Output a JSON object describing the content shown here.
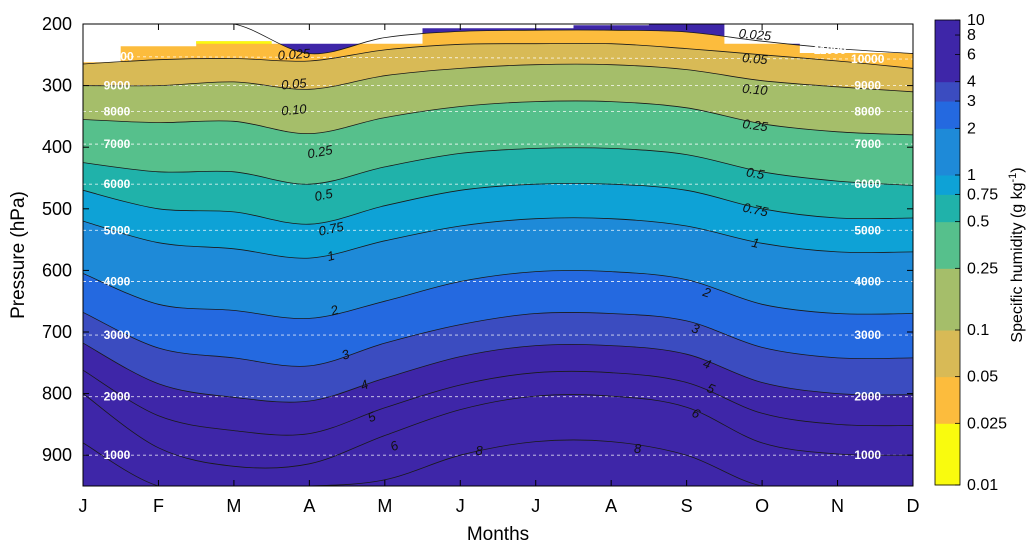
{
  "chart_data": {
    "type": "heatmap",
    "subtype": "filled-contour",
    "xlabel": "Months",
    "ylabel": "Pressure (hPa)",
    "x_ticks": [
      "J",
      "F",
      "M",
      "A",
      "M",
      "J",
      "J",
      "A",
      "S",
      "O",
      "N",
      "D"
    ],
    "y_ticks": [
      200,
      300,
      400,
      500,
      600,
      700,
      800,
      900
    ],
    "ylim": [
      200,
      950
    ],
    "y_reversed": true,
    "colorbar": {
      "title": "Specific humidity (g kg",
      "title_sup": "-1",
      "title_end": ")",
      "scale": "log",
      "range": [
        0.01,
        10
      ],
      "tick_labels": [
        "0.01",
        "0.025",
        "0.05",
        "0.1",
        "0.25",
        "0.5",
        "0.75",
        "1",
        "2",
        "3",
        "4",
        "6",
        "8",
        "10"
      ],
      "colors": [
        "#f9fb0e",
        "#fcbc3d",
        "#d8ba56",
        "#a5be6a",
        "#56c08c",
        "#20b2aa",
        "#0ea2d6",
        "#1e8ad8",
        "#2469e0",
        "#3b4cc0",
        "#3e26a8"
      ]
    },
    "humidity_levels": [
      "0.025",
      "0.05",
      "0.10",
      "0.25",
      "0.5",
      "0.75",
      "1",
      "2",
      "3",
      "4",
      "5",
      "6",
      "8"
    ],
    "level_pressures_hPa": {
      "0.025": [
        200,
        200,
        200,
        248,
        222,
        212,
        210,
        210,
        213,
        228,
        240,
        248
      ],
      "0.05": [
        265,
        258,
        256,
        260,
        242,
        233,
        232,
        232,
        240,
        250,
        260,
        272
      ],
      "0.10": [
        300,
        300,
        294,
        306,
        284,
        272,
        266,
        266,
        274,
        292,
        302,
        310
      ],
      "0.25": [
        355,
        360,
        358,
        378,
        352,
        334,
        326,
        326,
        336,
        362,
        375,
        380
      ],
      "0.5": [
        425,
        440,
        440,
        460,
        432,
        410,
        402,
        402,
        412,
        440,
        455,
        462
      ],
      "0.75": [
        470,
        500,
        505,
        525,
        495,
        470,
        460,
        460,
        470,
        500,
        515,
        515
      ],
      "1": [
        520,
        555,
        565,
        580,
        552,
        528,
        516,
        516,
        528,
        556,
        570,
        570
      ],
      "2": [
        605,
        655,
        665,
        678,
        650,
        618,
        602,
        602,
        615,
        655,
        670,
        670
      ],
      "3": [
        668,
        726,
        742,
        755,
        718,
        688,
        670,
        670,
        682,
        725,
        742,
        742
      ],
      "4": [
        718,
        784,
        806,
        812,
        775,
        740,
        722,
        722,
        736,
        782,
        800,
        802
      ],
      "5": [
        762,
        836,
        860,
        865,
        823,
        786,
        766,
        766,
        782,
        832,
        850,
        852
      ],
      "6": [
        800,
        888,
        918,
        914,
        868,
        826,
        804,
        804,
        822,
        880,
        898,
        900
      ],
      "8": [
        880,
        950,
        950,
        950,
        940,
        900,
        878,
        878,
        900,
        950,
        950,
        950
      ]
    },
    "max_values_by_month": [
      "3",
      "4",
      "4",
      "4",
      "6",
      "8",
      "8",
      "8",
      "8",
      "6",
      "5",
      "4"
    ],
    "top_cut_hPa": [
      262,
      238,
      232,
      232,
      232,
      207,
      207,
      202,
      202,
      232,
      247,
      247
    ],
    "yellow_tops_hPa": [
      262,
      236,
      228,
      232,
      232,
      207,
      207,
      202,
      200,
      232,
      247,
      247
    ],
    "altitude_labels_m": [
      "1000",
      "2000",
      "3000",
      "4000",
      "5000",
      "6000",
      "7000",
      "8000",
      "9000",
      "10000",
      "11000"
    ],
    "altitude_left_hPa": [
      900,
      805,
      705,
      618,
      535,
      460,
      395,
      342,
      300,
      253,
      0
    ],
    "altitude_right_hPa": [
      900,
      805,
      705,
      618,
      535,
      460,
      395,
      342,
      300,
      257,
      242
    ],
    "contour_labels": [
      {
        "t": "0.025",
        "m": 2.8,
        "p": 250,
        "a": -4
      },
      {
        "t": "0.025",
        "m": 8.9,
        "p": 218,
        "a": 5
      },
      {
        "t": "11000",
        "m": 9.9,
        "p": 242,
        "a": 0
      },
      {
        "t": "0.05",
        "m": 2.8,
        "p": 298,
        "a": -5
      },
      {
        "t": "0.05",
        "m": 8.9,
        "p": 257,
        "a": 5
      },
      {
        "t": "0.10",
        "m": 2.8,
        "p": 340,
        "a": -5
      },
      {
        "t": "0.10",
        "m": 8.9,
        "p": 307,
        "a": 5
      },
      {
        "t": "0.25",
        "m": 3.15,
        "p": 408,
        "a": -10
      },
      {
        "t": "0.25",
        "m": 8.9,
        "p": 365,
        "a": 8
      },
      {
        "t": "0.5",
        "m": 3.2,
        "p": 478,
        "a": -12
      },
      {
        "t": "0.5",
        "m": 8.9,
        "p": 443,
        "a": 10
      },
      {
        "t": "0.75",
        "m": 3.3,
        "p": 533,
        "a": -12
      },
      {
        "t": "0.75",
        "m": 8.9,
        "p": 502,
        "a": 12
      },
      {
        "t": "1",
        "m": 3.3,
        "p": 577,
        "a": -15
      },
      {
        "t": "1",
        "m": 8.9,
        "p": 556,
        "a": 12
      },
      {
        "t": "2",
        "m": 3.35,
        "p": 665,
        "a": -18
      },
      {
        "t": "2",
        "m": 8.25,
        "p": 636,
        "a": 18
      },
      {
        "t": "3",
        "m": 3.5,
        "p": 737,
        "a": -20
      },
      {
        "t": "3",
        "m": 8.1,
        "p": 695,
        "a": 18
      },
      {
        "t": "4",
        "m": 3.75,
        "p": 786,
        "a": -22
      },
      {
        "t": "4",
        "m": 8.25,
        "p": 752,
        "a": 20
      },
      {
        "t": "5",
        "m": 3.85,
        "p": 838,
        "a": -24
      },
      {
        "t": "5",
        "m": 8.3,
        "p": 792,
        "a": 22
      },
      {
        "t": "6",
        "m": 4.15,
        "p": 885,
        "a": -26
      },
      {
        "t": "6",
        "m": 8.1,
        "p": 832,
        "a": 26
      },
      {
        "t": "8",
        "m": 5.25,
        "p": 893,
        "a": 0
      },
      {
        "t": "8",
        "m": 7.35,
        "p": 890,
        "a": 0
      }
    ]
  }
}
